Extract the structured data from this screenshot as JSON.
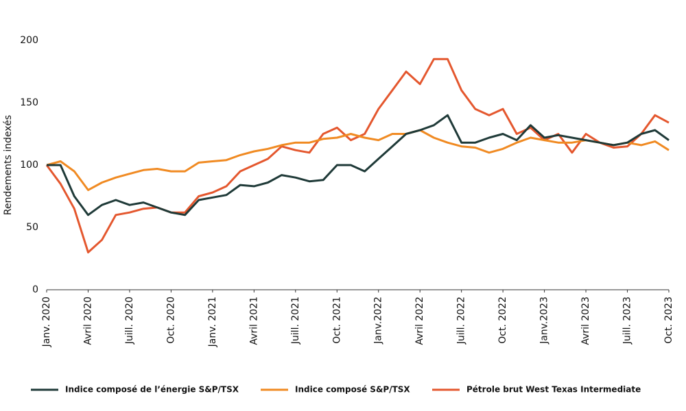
{
  "chart_data": {
    "type": "line",
    "y_label": "Rendements indexés",
    "categories": [
      "Janv. 2020",
      null,
      null,
      "Avril 2020",
      null,
      null,
      "Juill. 2020",
      null,
      null,
      "Oct. 2020",
      null,
      null,
      "Janv. 2021",
      null,
      null,
      "Avril 2021",
      null,
      null,
      "Juill. 2021",
      null,
      null,
      "Oct. 2021",
      null,
      null,
      "Janv.2022",
      null,
      null,
      "Avril 2022",
      null,
      null,
      "Juill. 2022",
      null,
      null,
      "Oct. 2022",
      null,
      null,
      "Janv.2023",
      null,
      null,
      "Avril 2023",
      null,
      null,
      "Juill. 2023",
      null,
      null,
      "Oct. 2023"
    ],
    "series": [
      {
        "name": "Indice composé de l’énergie S&P/TSX",
        "color": "#1f3a38",
        "values": [
          100,
          100,
          75,
          60,
          68,
          72,
          68,
          70,
          66,
          62,
          60,
          72,
          74,
          76,
          84,
          83,
          86,
          92,
          90,
          87,
          88,
          100,
          100,
          95,
          105,
          115,
          125,
          128,
          132,
          140,
          118,
          118,
          122,
          125,
          120,
          132,
          122,
          124,
          122,
          120,
          118,
          116,
          118,
          125,
          128,
          120
        ]
      },
      {
        "name": "Indice composé S&P/TSX",
        "color": "#f08a22",
        "values": [
          100,
          103,
          95,
          80,
          86,
          90,
          93,
          96,
          97,
          95,
          95,
          102,
          103,
          104,
          108,
          111,
          113,
          116,
          118,
          118,
          121,
          122,
          125,
          122,
          120,
          125,
          125,
          128,
          122,
          118,
          115,
          114,
          110,
          113,
          118,
          122,
          120,
          118,
          118,
          120,
          118,
          116,
          118,
          116,
          119,
          112
        ]
      },
      {
        "name": "Pétrole brut West Texas Intermediate",
        "color": "#e4572e",
        "values": [
          100,
          85,
          65,
          30,
          40,
          60,
          62,
          65,
          66,
          62,
          62,
          75,
          78,
          83,
          95,
          100,
          105,
          115,
          112,
          110,
          125,
          130,
          120,
          125,
          145,
          160,
          175,
          165,
          185,
          185,
          160,
          145,
          140,
          145,
          125,
          130,
          120,
          125,
          110,
          125,
          118,
          114,
          115,
          125,
          140,
          134
        ]
      }
    ],
    "ylim": [
      0,
      200
    ],
    "yticks": [
      0,
      50,
      100,
      150,
      200
    ],
    "grid": false,
    "legend": "bottom"
  }
}
